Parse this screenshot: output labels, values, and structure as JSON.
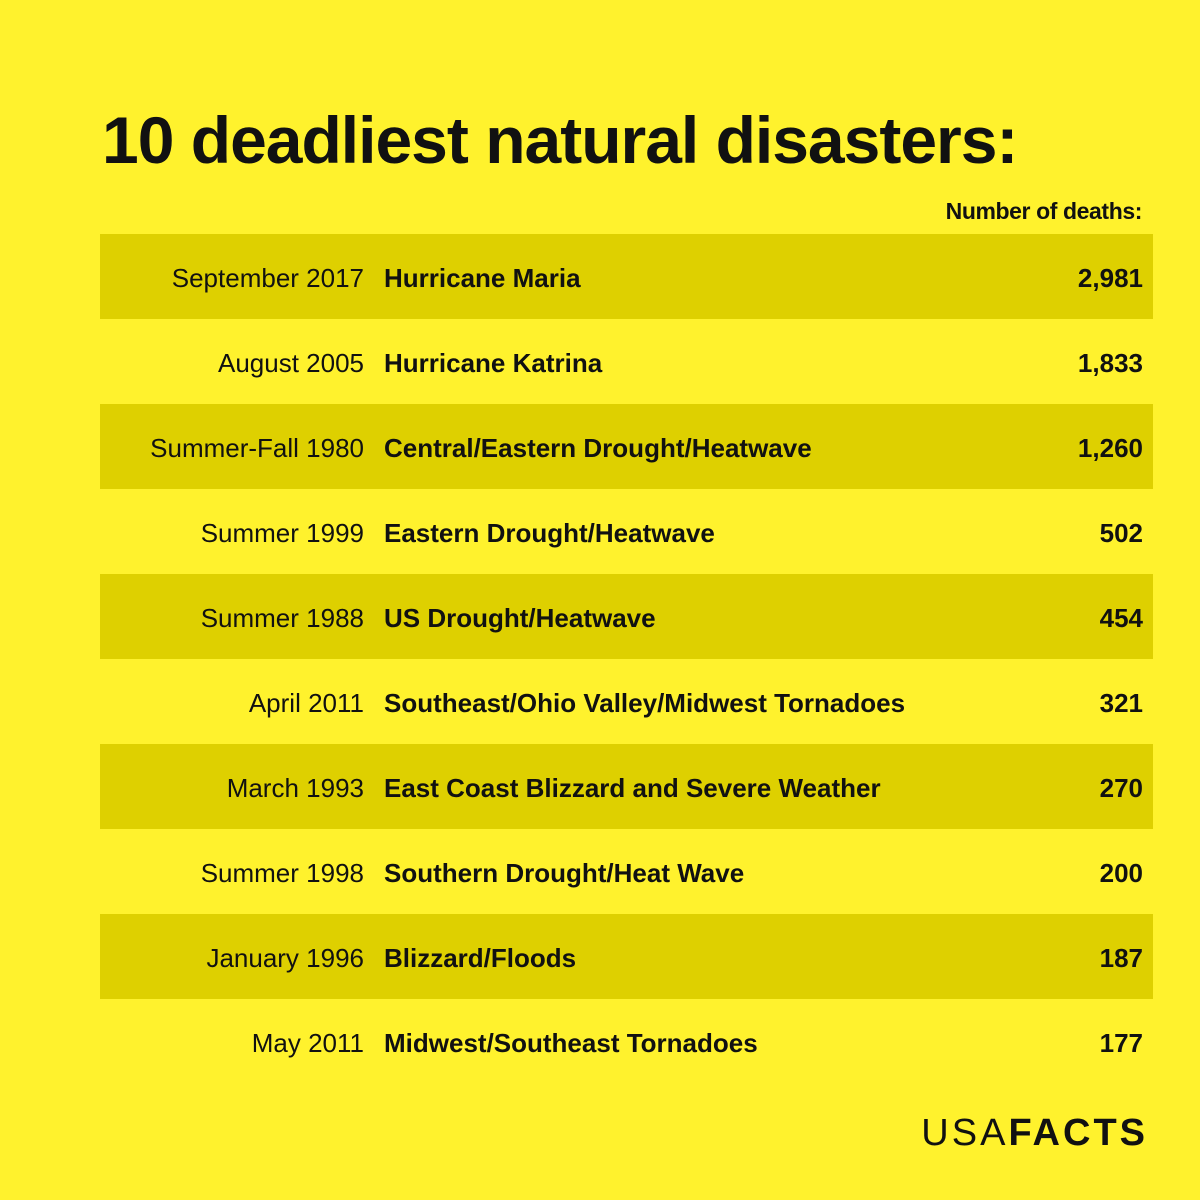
{
  "chart_data": {
    "type": "table",
    "title": "10 deadliest natural disasters:",
    "value_header": "Number of deaths:",
    "rows": [
      {
        "date": "September 2017",
        "event": "Hurricane Maria",
        "deaths": "2,981"
      },
      {
        "date": "August 2005",
        "event": "Hurricane Katrina",
        "deaths": "1,833"
      },
      {
        "date": "Summer-Fall 1980",
        "event": "Central/Eastern Drought/Heatwave",
        "deaths": "1,260"
      },
      {
        "date": "Summer 1999",
        "event": "Eastern Drought/Heatwave",
        "deaths": "502"
      },
      {
        "date": "Summer 1988",
        "event": "US Drought/Heatwave",
        "deaths": "454"
      },
      {
        "date": "April 2011",
        "event": "Southeast/Ohio Valley/Midwest Tornadoes",
        "deaths": "321"
      },
      {
        "date": "March 1993",
        "event": "East Coast Blizzard and Severe Weather",
        "deaths": "270"
      },
      {
        "date": "Summer 1998",
        "event": "Southern Drought/Heat Wave",
        "deaths": "200"
      },
      {
        "date": "January 1996",
        "event": "Blizzard/Floods",
        "deaths": "187"
      },
      {
        "date": "May 2011",
        "event": "Midwest/Southeast Tornadoes",
        "deaths": "177"
      }
    ],
    "background_color": "#fff22d",
    "stripe_color": "#ded000",
    "text_color": "#111111"
  },
  "brand": {
    "light": "USA",
    "bold": "FACTS"
  }
}
